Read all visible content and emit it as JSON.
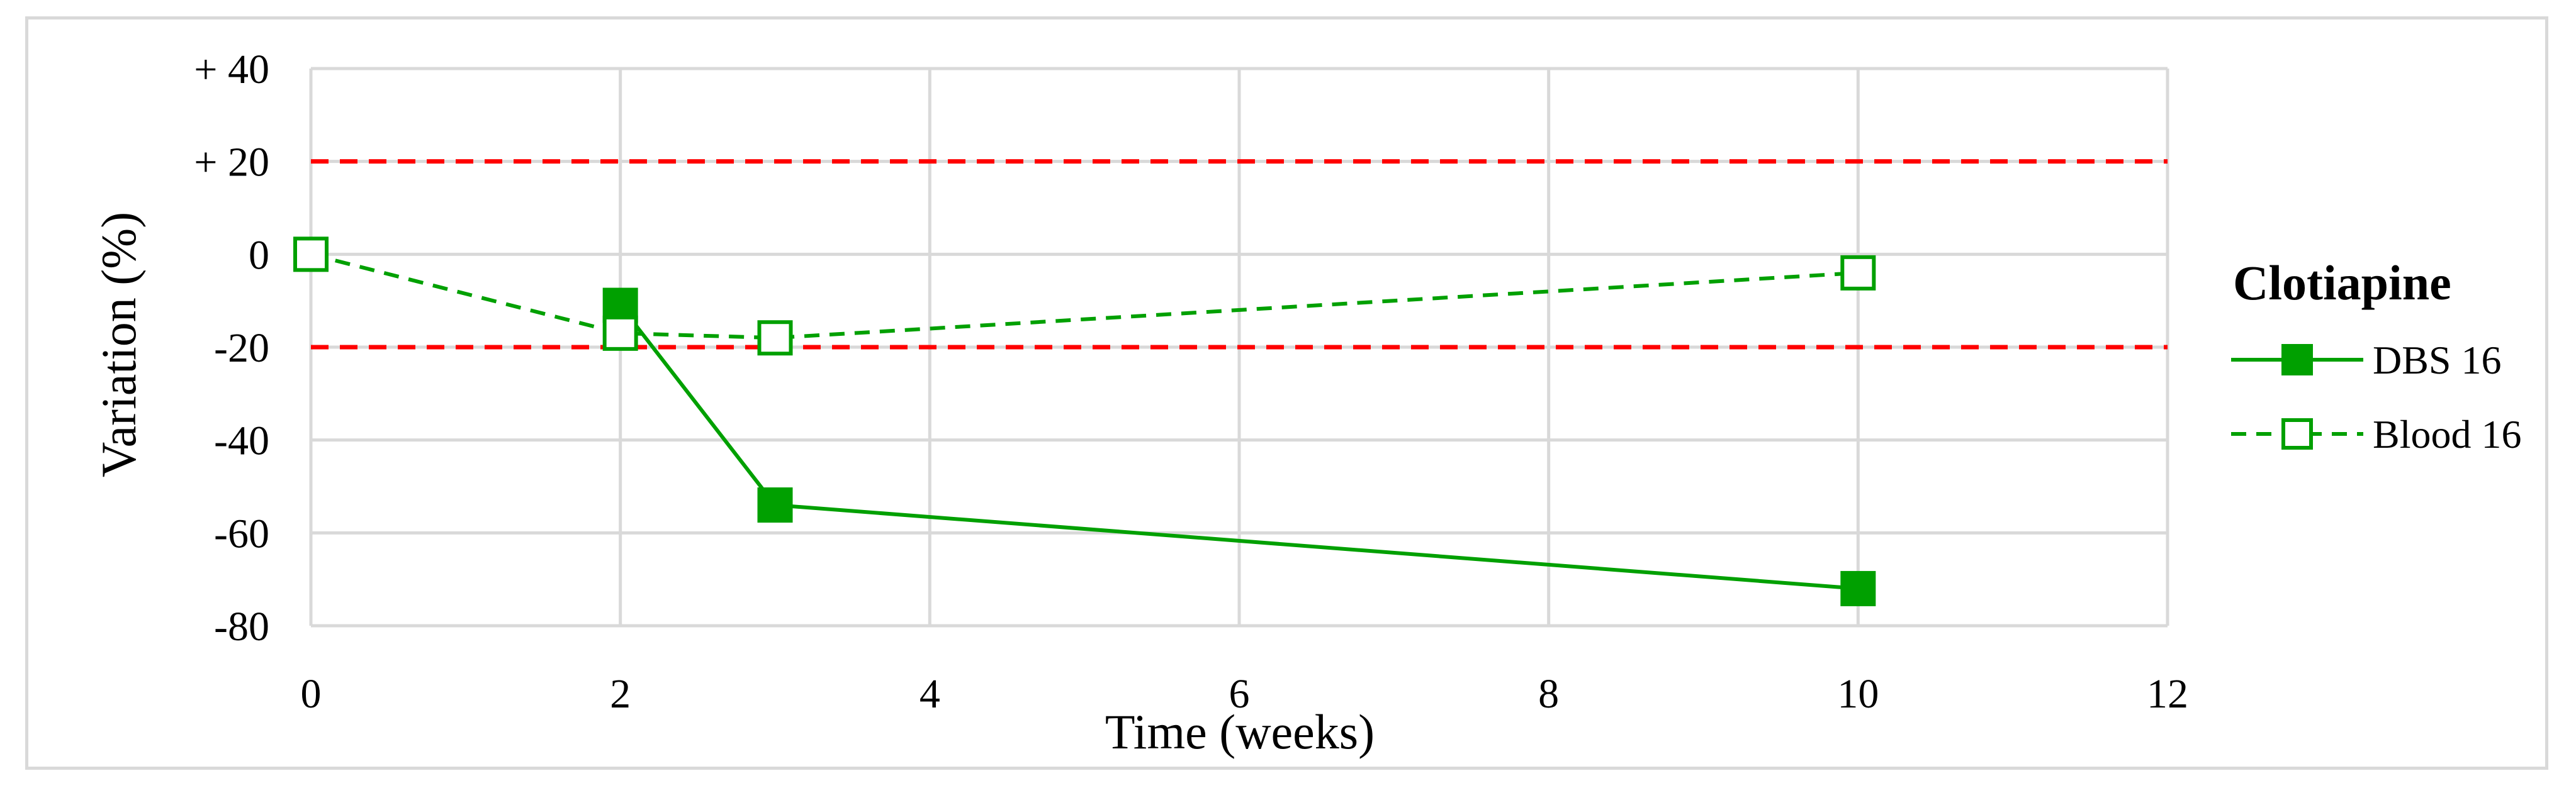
{
  "chart_data": {
    "type": "line",
    "title": "",
    "xlabel": "Time (weeks)",
    "ylabel": "Variation (%)",
    "xlim": [
      0,
      12
    ],
    "ylim": [
      -80,
      40
    ],
    "x_ticks": [
      0,
      2,
      4,
      6,
      8,
      10,
      12
    ],
    "x_tick_labels": [
      "0",
      "2",
      "4",
      "6",
      "8",
      "10",
      "12"
    ],
    "y_ticks": [
      40,
      20,
      0,
      -20,
      -40,
      -60,
      -80
    ],
    "y_tick_labels": [
      "+ 40",
      "+ 20",
      "0",
      "-20",
      "-40",
      "-60",
      "-80"
    ],
    "grid": true,
    "legend": {
      "title": "Clotiapine",
      "placement": "right"
    },
    "reference_lines": [
      {
        "y": 20,
        "color": "#ff0000",
        "style": "dashed"
      },
      {
        "y": -20,
        "color": "#ff0000",
        "style": "dashed"
      }
    ],
    "series": [
      {
        "name": "DBS 16",
        "marker": "filled-square",
        "line_style": "solid",
        "color": "#00a000",
        "x": [
          2,
          3,
          10
        ],
        "y": [
          -11,
          -54,
          -72
        ]
      },
      {
        "name": "Blood 16",
        "marker": "open-square",
        "line_style": "dashed",
        "color": "#00a000",
        "x": [
          0,
          2,
          3,
          10
        ],
        "y": [
          0,
          -17,
          -18,
          -4
        ]
      }
    ]
  }
}
